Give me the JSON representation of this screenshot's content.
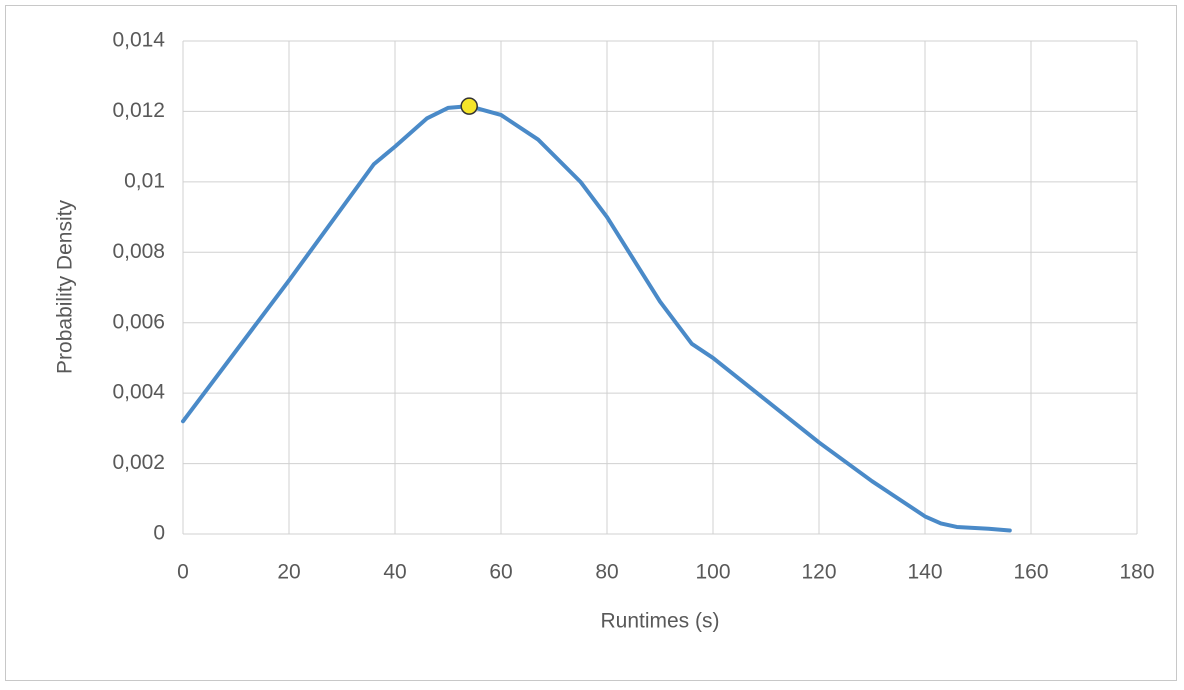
{
  "chart_data": {
    "type": "line",
    "x_label": "Runtimes (s)",
    "y_label": "Probability Density",
    "x": [
      0,
      10,
      20,
      36,
      40,
      46,
      50,
      54,
      60,
      67,
      75,
      80,
      90,
      96,
      100,
      110,
      120,
      130,
      140,
      143,
      146,
      152,
      156
    ],
    "series": [
      {
        "name": "Probability Density",
        "color": "#4a8ac8",
        "values": [
          0.0032,
          0.0052,
          0.0072,
          0.0105,
          0.011,
          0.0118,
          0.0121,
          0.01215,
          0.0119,
          0.0112,
          0.01,
          0.009,
          0.0066,
          0.0054,
          0.005,
          0.0038,
          0.0026,
          0.0015,
          0.0005,
          0.0003,
          0.0002,
          0.00015,
          0.0001
        ]
      }
    ],
    "highlight": {
      "x": 54,
      "y": 0.01215,
      "color": "#f5e52a"
    },
    "xlim": [
      0,
      180
    ],
    "ylim": [
      0,
      0.014
    ],
    "xticks": [
      0,
      20,
      40,
      60,
      80,
      100,
      120,
      140,
      160,
      180
    ],
    "yticks": [
      0,
      {
        "value": 0.002,
        "label": "0,002"
      },
      {
        "value": 0.004,
        "label": "0,004"
      },
      {
        "value": 0.006,
        "label": "0,006"
      },
      {
        "value": 0.008,
        "label": "0,008"
      },
      {
        "value": 0.01,
        "label": "0,01"
      },
      {
        "value": 0.012,
        "label": "0,012"
      },
      {
        "value": 0.014,
        "label": "0,014"
      }
    ],
    "grid": true
  }
}
